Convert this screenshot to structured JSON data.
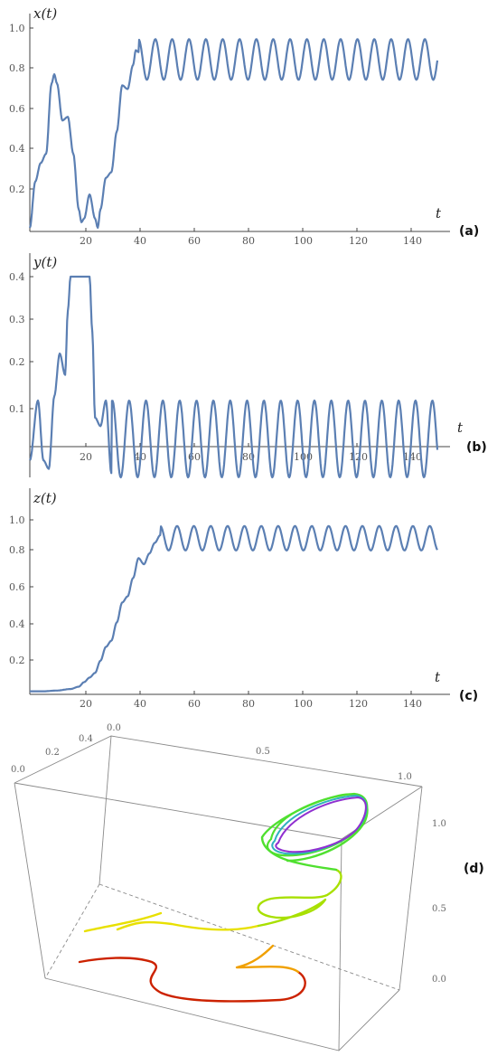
{
  "chart_data": [
    {
      "type": "line",
      "panel_label": "(a)",
      "ylabel": "x(t)",
      "xlabel": "t",
      "xlim": [
        0,
        152
      ],
      "ylim": [
        -0.02,
        1.08
      ],
      "x_ticks": [
        "20",
        "40",
        "60",
        "80",
        "100",
        "120",
        "140"
      ],
      "y_ticks": [
        "0.2",
        "0.4",
        "0.6",
        "0.8",
        "1.0"
      ],
      "series": [
        {
          "x": [
            0,
            2,
            4,
            6,
            8,
            9,
            10,
            12,
            14,
            16,
            18,
            19,
            20,
            22,
            24,
            25,
            26,
            28,
            30,
            32,
            34,
            36,
            38,
            39,
            40,
            150
          ],
          "y": [
            0.0,
            0.25,
            0.35,
            0.4,
            0.78,
            0.83,
            0.78,
            0.58,
            0.6,
            0.4,
            0.1,
            0.03,
            0.05,
            0.18,
            0.05,
            0.0,
            0.1,
            0.27,
            0.3,
            0.52,
            0.77,
            0.75,
            0.88,
            0.96,
            0.95,
            0.95
          ]
        }
      ]
    },
    {
      "type": "line",
      "panel_label": "(b)",
      "ylabel": "y(t)",
      "xlabel": "t",
      "xlim": [
        0,
        152
      ],
      "ylim": [
        -0.04,
        0.43
      ],
      "x_ticks": [
        "20",
        "40",
        "60",
        "80",
        "100",
        "120",
        "140"
      ],
      "y_ticks": [
        "0.1",
        "0.2",
        "0.3",
        "0.4"
      ],
      "series": [
        {
          "x": [
            0,
            3,
            5,
            7,
            9,
            11,
            13,
            14,
            15,
            16,
            20,
            22,
            23,
            24,
            26,
            28,
            30,
            150
          ],
          "y": [
            0.0,
            0.14,
            0.0,
            -0.02,
            0.15,
            0.25,
            0.2,
            0.35,
            0.43,
            0.43,
            0.43,
            0.43,
            0.3,
            0.1,
            0.08,
            0.14,
            -0.03,
            0.0
          ]
        }
      ]
    },
    {
      "type": "line",
      "panel_label": "(c)",
      "ylabel": "z(t)",
      "xlabel": "t",
      "xlim": [
        0,
        152
      ],
      "ylim": [
        -0.02,
        1.12
      ],
      "x_ticks": [
        "20",
        "40",
        "60",
        "80",
        "100",
        "120",
        "140"
      ],
      "y_ticks": [
        "0.2",
        "0.4",
        "0.6",
        "0.8",
        "1.0"
      ],
      "series": [
        {
          "x": [
            0,
            5,
            10,
            15,
            18,
            20,
            22,
            24,
            26,
            28,
            30,
            32,
            34,
            36,
            38,
            40,
            42,
            44,
            46,
            48,
            150
          ],
          "y": [
            0.0,
            0.0,
            0.005,
            0.015,
            0.03,
            0.06,
            0.09,
            0.12,
            0.2,
            0.29,
            0.33,
            0.45,
            0.58,
            0.62,
            0.74,
            0.87,
            0.83,
            0.9,
            0.97,
            1.02,
            1.0
          ]
        }
      ]
    },
    {
      "type": "line",
      "panel_label": "(d)",
      "projection": "3d",
      "axis_ticks": {
        "x": [
          "0.0",
          "0.5",
          "1.0"
        ],
        "y": [
          "0.0",
          "0.2",
          "0.4"
        ],
        "z": [
          "0.0",
          "0.5",
          "1.0"
        ]
      },
      "color_map": [
        "#cc2200",
        "#e06000",
        "#f0a000",
        "#e8e000",
        "#a8e000",
        "#50e030",
        "#20d060",
        "#30b0c0",
        "#9030d0"
      ]
    }
  ]
}
